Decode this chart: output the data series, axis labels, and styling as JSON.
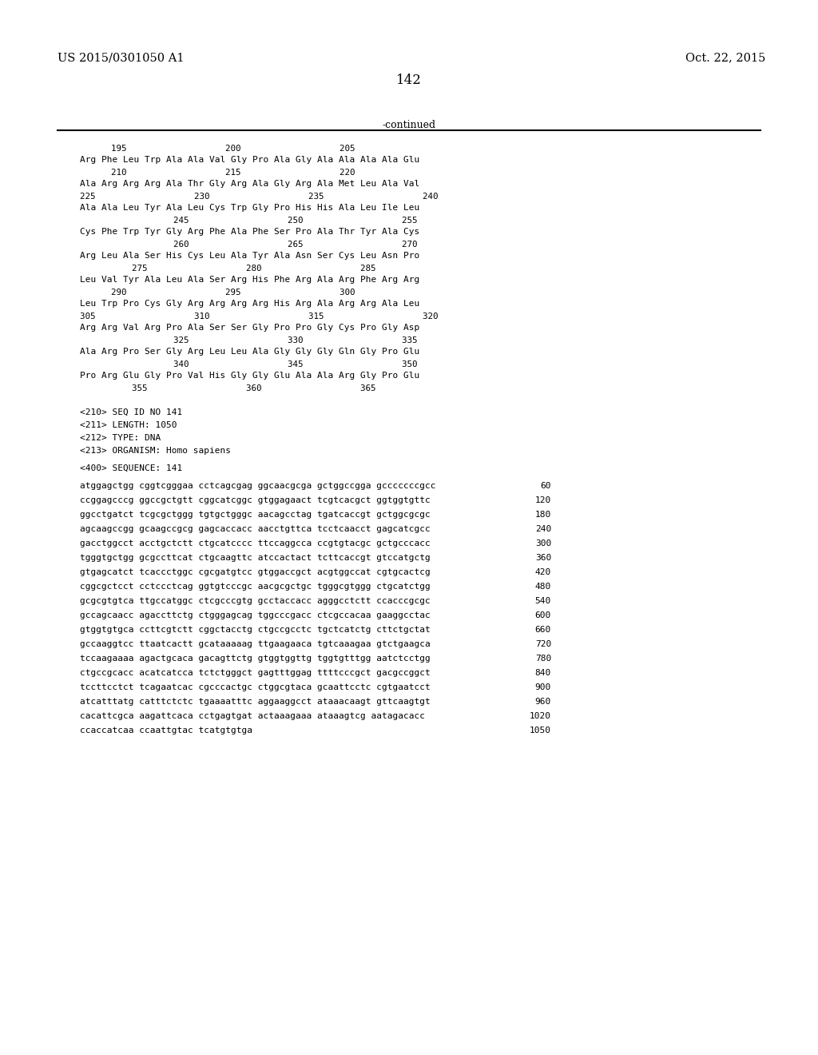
{
  "header_left": "US 2015/0301050 A1",
  "header_right": "Oct. 22, 2015",
  "page_number": "142",
  "continued_label": "-continued",
  "bg_color": "#ffffff",
  "text_color": "#000000",
  "seq_rows": [
    [
      "      195                   200                   205",
      null
    ],
    [
      null,
      "Arg Phe Leu Trp Ala Ala Val Gly Pro Ala Gly Ala Ala Ala Ala Glu"
    ],
    [
      "      210                   215                   220",
      null
    ],
    [
      null,
      "Ala Arg Arg Arg Ala Thr Gly Arg Ala Gly Arg Ala Met Leu Ala Val"
    ],
    [
      "225                   230                   235                   240",
      null
    ],
    [
      null,
      "Ala Ala Leu Tyr Ala Leu Cys Trp Gly Pro His His Ala Leu Ile Leu"
    ],
    [
      "                  245                   250                   255",
      null
    ],
    [
      null,
      "Cys Phe Trp Tyr Gly Arg Phe Ala Phe Ser Pro Ala Thr Tyr Ala Cys"
    ],
    [
      "                  260                   265                   270",
      null
    ],
    [
      null,
      "Arg Leu Ala Ser His Cys Leu Ala Tyr Ala Asn Ser Cys Leu Asn Pro"
    ],
    [
      "          275                   280                   285",
      null
    ],
    [
      null,
      "Leu Val Tyr Ala Leu Ala Ser Arg His Phe Arg Ala Arg Phe Arg Arg"
    ],
    [
      "      290                   295                   300",
      null
    ],
    [
      null,
      "Leu Trp Pro Cys Gly Arg Arg Arg Arg His Arg Ala Arg Arg Ala Leu"
    ],
    [
      "305                   310                   315                   320",
      null
    ],
    [
      null,
      "Arg Arg Val Arg Pro Ala Ser Ser Gly Pro Pro Gly Cys Pro Gly Asp"
    ],
    [
      "                  325                   330                   335",
      null
    ],
    [
      null,
      "Ala Arg Pro Ser Gly Arg Leu Leu Ala Gly Gly Gly Gln Gly Pro Glu"
    ],
    [
      "                  340                   345                   350",
      null
    ],
    [
      null,
      "Pro Arg Glu Gly Pro Val His Gly Gly Glu Ala Ala Arg Gly Pro Glu"
    ],
    [
      "          355                   360                   365",
      null
    ]
  ],
  "metadata": [
    "<210> SEQ ID NO 141",
    "<211> LENGTH: 1050",
    "<212> TYPE: DNA",
    "<213> ORGANISM: Homo sapiens"
  ],
  "seq_header": "<400> SEQUENCE: 141",
  "dna_lines": [
    [
      "atggagctgg cggtcgggaa cctcagcgag ggcaacgcga gctggccgga gcccccccgcc",
      "60"
    ],
    [
      "ccggagcccg ggccgctgtt cggcatcggc gtggagaact tcgtcacgct ggtggtgttc",
      "120"
    ],
    [
      "ggcctgatct tcgcgctggg tgtgctgggc aacagcctag tgatcaccgt gctggcgcgc",
      "180"
    ],
    [
      "agcaagccgg gcaagccgcg gagcaccacc aacctgttca tcctcaacct gagcatcgcc",
      "240"
    ],
    [
      "gacctggcct acctgctctt ctgcatcccc ttccaggcca ccgtgtacgc gctgcccacc",
      "300"
    ],
    [
      "tgggtgctgg gcgccttcat ctgcaagttc atccactact tcttcaccgt gtccatgctg",
      "360"
    ],
    [
      "gtgagcatct tcaccctggc cgcgatgtcc gtggaccgct acgtggccat cgtgcactcg",
      "420"
    ],
    [
      "cggcgctcct cctccctcag ggtgtcccgc aacgcgctgc tgggcgtggg ctgcatctgg",
      "480"
    ],
    [
      "gcgcgtgtca ttgccatggc ctcgcccgtg gcctaccacc agggcctctt ccacccgcgc",
      "540"
    ],
    [
      "gccagcaacc agaccttctg ctgggagcag tggcccgacc ctcgccacaa gaaggcctac",
      "600"
    ],
    [
      "gtggtgtgca ccttcgtctt cggctacctg ctgccgcctc tgctcatctg cttctgctat",
      "660"
    ],
    [
      "gccaaggtcc ttaatcactt gcataaaaag ttgaagaaca tgtcaaagaa gtctgaagca",
      "720"
    ],
    [
      "tccaagaaaa agactgcaca gacagttctg gtggtggttg tggtgtttgg aatctcctgg",
      "780"
    ],
    [
      "ctgccgcacc acatcatcca tctctgggct gagtttggag ttttcccgct gacgccggct",
      "840"
    ],
    [
      "tccttcctct tcagaatcac cgcccactgc ctggcgtaca gcaattcctc cgtgaatcct",
      "900"
    ],
    [
      "atcatttatg catttctctc tgaaaatttc aggaaggcct ataaacaagt gttcaagtgt",
      "960"
    ],
    [
      "cacattcgca aagattcaca cctgagtgat actaaagaaa ataaagtcg aatagacacc",
      "1020"
    ],
    [
      "ccaccatcaa ccaattgtac tcatgtgtga",
      "1050"
    ]
  ]
}
